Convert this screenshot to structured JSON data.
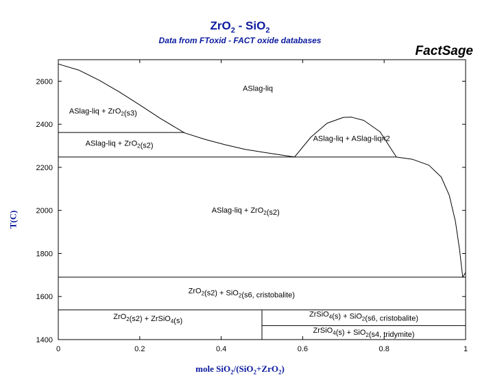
{
  "chart_data": {
    "type": "line",
    "title": "ZrO2 - SiO2",
    "subtitle": "Data from FToxid - FACT oxide databases",
    "brand": "FactSage",
    "xlabel": "mole SiO2/(SiO2+ZrO2)",
    "ylabel": "T(C)",
    "xlim": [
      0,
      1
    ],
    "ylim": [
      1400,
      2700
    ],
    "xticks": [
      0,
      0.2,
      0.4,
      0.6,
      0.8,
      1
    ],
    "xtick_labels": [
      "0",
      "0.2",
      "0.4",
      "0.6",
      "0.8",
      "1"
    ],
    "yticks": [
      1400,
      1600,
      1800,
      2000,
      2200,
      2400,
      2600
    ],
    "ytick_labels": [
      "1400",
      "1600",
      "1800",
      "2000",
      "2200",
      "2400",
      "2600"
    ],
    "series": [
      {
        "values_xy": [
          [
            0,
            2680
          ],
          [
            0.05,
            2652
          ],
          [
            0.1,
            2605
          ],
          [
            0.15,
            2550
          ],
          [
            0.2,
            2490
          ],
          [
            0.25,
            2428
          ],
          [
            0.31,
            2360
          ],
          [
            0.36,
            2330
          ],
          [
            0.41,
            2305
          ],
          [
            0.46,
            2283
          ],
          [
            0.52,
            2265
          ],
          [
            0.58,
            2248
          ]
        ]
      },
      {
        "values_xy": [
          [
            0.58,
            2248
          ],
          [
            0.62,
            2340
          ],
          [
            0.66,
            2405
          ],
          [
            0.7,
            2432
          ],
          [
            0.72,
            2433
          ],
          [
            0.75,
            2418
          ],
          [
            0.79,
            2365
          ],
          [
            0.83,
            2248
          ]
        ]
      },
      {
        "values_xy": [
          [
            0.83,
            2248
          ],
          [
            0.87,
            2237
          ],
          [
            0.91,
            2210
          ],
          [
            0.94,
            2155
          ],
          [
            0.96,
            2070
          ],
          [
            0.975,
            1950
          ],
          [
            0.985,
            1820
          ],
          [
            0.993,
            1690
          ]
        ]
      },
      {
        "values_xy": [
          [
            0,
            2362
          ],
          [
            0.31,
            2362
          ]
        ]
      },
      {
        "values_xy": [
          [
            0,
            2248
          ],
          [
            0.83,
            2248
          ]
        ]
      },
      {
        "values_xy": [
          [
            0,
            1690
          ],
          [
            1,
            1690
          ]
        ]
      },
      {
        "values_xy": [
          [
            0,
            1538
          ],
          [
            1,
            1538
          ]
        ]
      },
      {
        "values_xy": [
          [
            0.5,
            1465
          ],
          [
            1,
            1465
          ]
        ]
      },
      {
        "values_xy": [
          [
            0.5,
            1400
          ],
          [
            0.5,
            1538
          ]
        ]
      },
      {
        "values_xy": [
          [
            0.993,
            1690
          ],
          [
            1,
            1712
          ]
        ]
      }
    ],
    "annotations": [
      {
        "text": "ASlag-liq",
        "x": 0.49,
        "y": 2555
      },
      {
        "text": "ASlag-liq + ZrO2(s3)",
        "x": 0.11,
        "y": 2450
      },
      {
        "text": "ASlag-liq + ZrO2(s2)",
        "x": 0.15,
        "y": 2300
      },
      {
        "text": "ASlag-liq + ASlag-liq#2",
        "x": 0.72,
        "y": 2322
      },
      {
        "text": "ASlag-liq + ZrO2(s2)",
        "x": 0.46,
        "y": 1990
      },
      {
        "text": "ZrO2(s2) + SiO2(s6, cristobalite)",
        "x": 0.45,
        "y": 1615
      },
      {
        "text": "ZrO2(s2) + ZrSiO4(s)",
        "x": 0.22,
        "y": 1495
      },
      {
        "text": "ZrSiO4(s) + SiO2(s6, cristobalite)",
        "x": 0.75,
        "y": 1506
      },
      {
        "text": "ZrSiO4(s) + SiO2(s4, tridymite)",
        "x": 0.75,
        "y": 1432
      }
    ]
  }
}
